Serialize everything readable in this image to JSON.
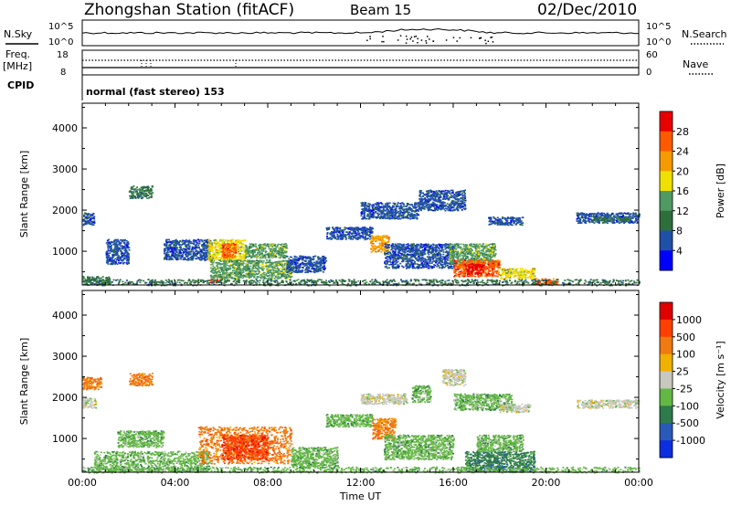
{
  "header": {
    "station": "Zhongshan Station (fitACF)",
    "beam": "Beam 15",
    "date": "02/Dec/2010"
  },
  "top_panels": {
    "nsky_label": "N.Sky",
    "nsearch_label": "N.Search",
    "freq_label": "Freq.",
    "freq_unit": "[MHz]",
    "nave_label": "Nave",
    "cpid_label": "CPID",
    "cpid_text": "normal (fast stereo) 153",
    "noise_ticks": [
      "10^5",
      "10^0"
    ],
    "freq_ticks": [
      "18",
      "8"
    ],
    "nave_ticks": [
      "60",
      "0"
    ]
  },
  "colors": {
    "power_scale": [
      "#0000ff",
      "#1f50a8",
      "#2e6e3a",
      "#4f9a63",
      "#f0e000",
      "#f59b00",
      "#ff5a00",
      "#e80000"
    ],
    "velocity_scale": [
      "#0b2fe0",
      "#2a5ab8",
      "#2e7a4b",
      "#62b842",
      "#c8c8c0",
      "#f0b000",
      "#ee7a10",
      "#ff4000",
      "#e00000"
    ]
  },
  "chart_data": [
    {
      "type": "heatmap",
      "name": "power",
      "ylabel": "Slant Range [km]",
      "xlabel": "",
      "ylim": [
        180,
        4600
      ],
      "yticks": [
        1000,
        2000,
        3000,
        4000
      ],
      "x_ticks": [
        "00:00",
        "04:00",
        "08:00",
        "12:00",
        "16:00",
        "20:00",
        "00:00"
      ],
      "x_range_hours": [
        0,
        24
      ],
      "colorbar": {
        "label": "Power [dB]",
        "ticks": [
          "28",
          "24",
          "20",
          "16",
          "12",
          "8",
          "4"
        ]
      },
      "regions": [
        {
          "t": [
            0.0,
            0.5
          ],
          "r": [
            1650,
            1950
          ],
          "level": 1
        },
        {
          "t": [
            0.0,
            1.2
          ],
          "r": [
            200,
            400
          ],
          "level": 2
        },
        {
          "t": [
            1.0,
            2.0
          ],
          "r": [
            700,
            1300
          ],
          "level": 1
        },
        {
          "t": [
            2.0,
            3.0
          ],
          "r": [
            2300,
            2600
          ],
          "level": 2
        },
        {
          "t": [
            3.5,
            5.5
          ],
          "r": [
            800,
            1300
          ],
          "level": 1
        },
        {
          "t": [
            5.4,
            7.0
          ],
          "r": [
            800,
            1300
          ],
          "level": 4
        },
        {
          "t": [
            6.0,
            6.6
          ],
          "r": [
            850,
            1200
          ],
          "level": 6
        },
        {
          "t": [
            5.5,
            9.0
          ],
          "r": [
            350,
            800
          ],
          "level": 3
        },
        {
          "t": [
            7.0,
            8.8
          ],
          "r": [
            850,
            1200
          ],
          "level": 3
        },
        {
          "t": [
            5.5,
            6.0
          ],
          "r": [
            250,
            330
          ],
          "level": 7
        },
        {
          "t": [
            8.8,
            10.5
          ],
          "r": [
            500,
            900
          ],
          "level": 1
        },
        {
          "t": [
            10.5,
            12.5
          ],
          "r": [
            1300,
            1600
          ],
          "level": 1
        },
        {
          "t": [
            12.0,
            14.5
          ],
          "r": [
            1800,
            2200
          ],
          "level": 1
        },
        {
          "t": [
            12.4,
            13.2
          ],
          "r": [
            1000,
            1400
          ],
          "level": 5
        },
        {
          "t": [
            13.0,
            16.0
          ],
          "r": [
            600,
            1200
          ],
          "level": 1
        },
        {
          "t": [
            14.5,
            16.5
          ],
          "r": [
            2000,
            2500
          ],
          "level": 1
        },
        {
          "t": [
            15.8,
            17.8
          ],
          "r": [
            700,
            1200
          ],
          "level": 3
        },
        {
          "t": [
            16.0,
            18.0
          ],
          "r": [
            400,
            800
          ],
          "level": 6
        },
        {
          "t": [
            16.5,
            17.3
          ],
          "r": [
            450,
            700
          ],
          "level": 7
        },
        {
          "t": [
            17.5,
            19.0
          ],
          "r": [
            1650,
            1850
          ],
          "level": 1
        },
        {
          "t": [
            18.0,
            19.5
          ],
          "r": [
            350,
            600
          ],
          "level": 4
        },
        {
          "t": [
            19.5,
            20.5
          ],
          "r": [
            200,
            350
          ],
          "level": 6
        },
        {
          "t": [
            21.3,
            24.0
          ],
          "r": [
            1700,
            1950
          ],
          "level": 1
        },
        {
          "t": [
            22.0,
            23.5
          ],
          "r": [
            1750,
            1850
          ],
          "level": 2
        },
        {
          "t": [
            0.0,
            24.0
          ],
          "r": [
            180,
            330
          ],
          "level": 2
        }
      ]
    },
    {
      "type": "heatmap",
      "name": "velocity",
      "ylabel": "Slant Range [km]",
      "xlabel": "Time UT",
      "ylim": [
        180,
        4600
      ],
      "yticks": [
        1000,
        2000,
        3000,
        4000
      ],
      "x_ticks": [
        "00:00",
        "04:00",
        "08:00",
        "12:00",
        "16:00",
        "20:00",
        "00:00"
      ],
      "x_range_hours": [
        0,
        24
      ],
      "colorbar": {
        "label": "Velocity [m s⁻¹]",
        "ticks": [
          "1000",
          "500",
          "100",
          "25",
          "-25",
          "-100",
          "-500",
          "-1000"
        ]
      },
      "regions": [
        {
          "t": [
            0.0,
            0.6
          ],
          "r": [
            1750,
            2000
          ],
          "level": 4
        },
        {
          "t": [
            0.0,
            0.8
          ],
          "r": [
            2200,
            2500
          ],
          "level": 6
        },
        {
          "t": [
            2.0,
            3.0
          ],
          "r": [
            2300,
            2600
          ],
          "level": 6
        },
        {
          "t": [
            0.5,
            5.5
          ],
          "r": [
            200,
            700
          ],
          "level": 3
        },
        {
          "t": [
            1.5,
            3.5
          ],
          "r": [
            800,
            1200
          ],
          "level": 3
        },
        {
          "t": [
            5.0,
            9.0
          ],
          "r": [
            400,
            1300
          ],
          "level": 6
        },
        {
          "t": [
            6.0,
            8.0
          ],
          "r": [
            500,
            1100
          ],
          "level": 7
        },
        {
          "t": [
            9.0,
            11.0
          ],
          "r": [
            300,
            800
          ],
          "level": 3
        },
        {
          "t": [
            10.5,
            12.5
          ],
          "r": [
            1300,
            1600
          ],
          "level": 3
        },
        {
          "t": [
            12.0,
            14.0
          ],
          "r": [
            1850,
            2100
          ],
          "level": 4
        },
        {
          "t": [
            12.5,
            13.5
          ],
          "r": [
            1000,
            1500
          ],
          "level": 6
        },
        {
          "t": [
            13.0,
            16.0
          ],
          "r": [
            500,
            1100
          ],
          "level": 3
        },
        {
          "t": [
            14.2,
            15.0
          ],
          "r": [
            1900,
            2300
          ],
          "level": 3
        },
        {
          "t": [
            15.5,
            16.5
          ],
          "r": [
            2300,
            2700
          ],
          "level": 4
        },
        {
          "t": [
            16.0,
            18.5
          ],
          "r": [
            1700,
            2100
          ],
          "level": 3
        },
        {
          "t": [
            16.5,
            19.5
          ],
          "r": [
            200,
            700
          ],
          "level": 2
        },
        {
          "t": [
            17.0,
            19.0
          ],
          "r": [
            700,
            1100
          ],
          "level": 3
        },
        {
          "t": [
            18.0,
            19.3
          ],
          "r": [
            1650,
            1850
          ],
          "level": 4
        },
        {
          "t": [
            21.3,
            24.0
          ],
          "r": [
            1750,
            1950
          ],
          "level": 4
        },
        {
          "t": [
            0.0,
            24.0
          ],
          "r": [
            180,
            320
          ],
          "level": 3
        }
      ]
    }
  ]
}
